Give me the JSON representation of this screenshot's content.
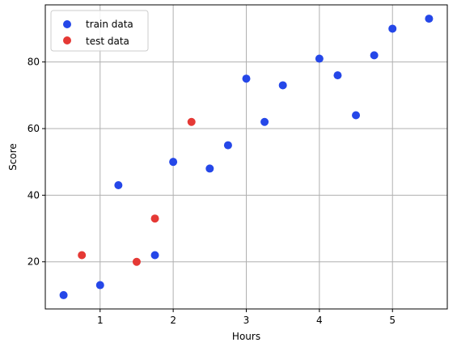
{
  "chart_data": {
    "type": "scatter",
    "title": "",
    "xlabel": "Hours",
    "ylabel": "Score",
    "xlim": [
      0.25,
      5.75
    ],
    "ylim": [
      5.85,
      97.15
    ],
    "xticks": [
      1,
      2,
      3,
      4,
      5
    ],
    "yticks": [
      20,
      40,
      60,
      80
    ],
    "grid": true,
    "legend_position": "top-left",
    "series": [
      {
        "name": "train data",
        "color": "#2547e8",
        "points": [
          {
            "x": 0.5,
            "y": 10
          },
          {
            "x": 1.0,
            "y": 13
          },
          {
            "x": 1.25,
            "y": 43
          },
          {
            "x": 1.75,
            "y": 22
          },
          {
            "x": 2.0,
            "y": 50
          },
          {
            "x": 2.5,
            "y": 48
          },
          {
            "x": 2.75,
            "y": 55
          },
          {
            "x": 3.0,
            "y": 75
          },
          {
            "x": 3.25,
            "y": 62
          },
          {
            "x": 3.5,
            "y": 73
          },
          {
            "x": 4.0,
            "y": 81
          },
          {
            "x": 4.25,
            "y": 76
          },
          {
            "x": 4.5,
            "y": 64
          },
          {
            "x": 4.75,
            "y": 82
          },
          {
            "x": 5.0,
            "y": 90
          },
          {
            "x": 5.5,
            "y": 93
          }
        ]
      },
      {
        "name": "test data",
        "color": "#e53935",
        "points": [
          {
            "x": 0.75,
            "y": 22
          },
          {
            "x": 1.5,
            "y": 20
          },
          {
            "x": 1.75,
            "y": 33
          },
          {
            "x": 2.25,
            "y": 62
          }
        ]
      }
    ]
  }
}
